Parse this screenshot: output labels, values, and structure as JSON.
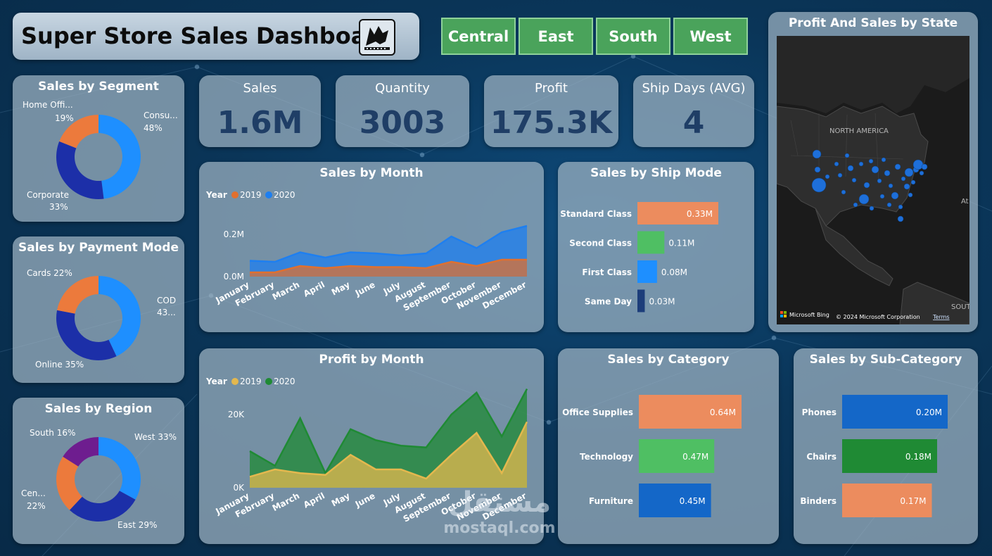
{
  "header": {
    "title": "Super Store Sales Dashboard"
  },
  "slicers": [
    "Central",
    "East",
    "South",
    "West"
  ],
  "kpis": [
    {
      "title": "Sales",
      "value": "1.6M"
    },
    {
      "title": "Quantity",
      "value": "3003"
    },
    {
      "title": "Profit",
      "value": "175.3K"
    },
    {
      "title": "Ship Days (AVG)",
      "value": "4"
    }
  ],
  "colors": {
    "orange": "#ec7a3c",
    "blue": "#1e8fff",
    "navy": "#1c2fa8",
    "purple": "#6e1d8f",
    "green": "#4fbf63",
    "dark_green": "#1f8a34",
    "salmon": "#ec8c5e",
    "mid_blue": "#1467c8"
  },
  "map": {
    "title": "Profit And Sales by State",
    "label_na": "NORTH AMERICA",
    "label_sa": "SOUTH A",
    "label_at": "At",
    "attribution_brand": "Microsoft Bing",
    "attribution": "© 2024 Microsoft Corporation",
    "terms": "Terms"
  },
  "watermark": {
    "logo": "مستقل",
    "text": "mostaql.com"
  },
  "chart_data": [
    {
      "id": "segment",
      "type": "pie",
      "title": "Sales by Segment",
      "slices": [
        {
          "label": "Consu...",
          "pct": "48%",
          "value": 48,
          "color": "#1e8fff"
        },
        {
          "label": "Corporate",
          "pct": "33%",
          "value": 33,
          "color": "#1c2fa8"
        },
        {
          "label": "Home Offi...",
          "pct": "19%",
          "value": 19,
          "color": "#ec7a3c"
        }
      ]
    },
    {
      "id": "payment",
      "type": "pie",
      "title": "Sales by Payment Mode",
      "slices": [
        {
          "label": "COD",
          "pct": "43...",
          "value": 43,
          "color": "#1e8fff"
        },
        {
          "label": "Online 35%",
          "value": 35,
          "color": "#1c2fa8"
        },
        {
          "label": "Cards 22%",
          "value": 22,
          "color": "#ec7a3c"
        }
      ]
    },
    {
      "id": "region",
      "type": "pie",
      "title": "Sales by Region",
      "slices": [
        {
          "label": "West 33%",
          "value": 33,
          "color": "#1e8fff"
        },
        {
          "label": "East 29%",
          "value": 29,
          "color": "#1c2fa8"
        },
        {
          "label": "Cen...",
          "pct": "22%",
          "value": 22,
          "color": "#ec7a3c"
        },
        {
          "label": "South 16%",
          "value": 16,
          "color": "#6e1d8f"
        }
      ]
    },
    {
      "id": "sales_month",
      "type": "area",
      "title": "Sales by Month",
      "legend_title": "Year",
      "categories": [
        "January",
        "February",
        "March",
        "April",
        "May",
        "June",
        "July",
        "August",
        "September",
        "October",
        "November",
        "December"
      ],
      "ylim": [
        0,
        0.26
      ],
      "yticks": [
        {
          "v": 0,
          "label": "0.0M"
        },
        {
          "v": 0.2,
          "label": "0.2M"
        }
      ],
      "series": [
        {
          "name": "2019",
          "color": "#e0702f",
          "values": [
            0.02,
            0.02,
            0.05,
            0.04,
            0.05,
            0.045,
            0.045,
            0.04,
            0.07,
            0.05,
            0.08,
            0.08
          ]
        },
        {
          "name": "2020",
          "color": "#1e7ff0",
          "values": [
            0.075,
            0.07,
            0.115,
            0.09,
            0.115,
            0.11,
            0.1,
            0.11,
            0.19,
            0.135,
            0.21,
            0.24
          ]
        }
      ]
    },
    {
      "id": "profit_month",
      "type": "area",
      "title": "Profit by Month",
      "legend_title": "Year",
      "categories": [
        "January",
        "February",
        "March",
        "April",
        "May",
        "June",
        "July",
        "August",
        "September",
        "October",
        "November",
        "December"
      ],
      "ylim": [
        0,
        25000
      ],
      "yticks": [
        {
          "v": 0,
          "label": "0K"
        },
        {
          "v": 20000,
          "label": "20K"
        }
      ],
      "series": [
        {
          "name": "2019",
          "color": "#e4b84e",
          "values": [
            3000,
            5000,
            4000,
            3500,
            9000,
            5000,
            5000,
            2500,
            9000,
            15000,
            4000,
            18000
          ]
        },
        {
          "name": "2020",
          "color": "#1f8a34",
          "values": [
            10000,
            6000,
            19000,
            4000,
            16000,
            13000,
            11500,
            11000,
            20000,
            26000,
            14000,
            27000
          ]
        }
      ]
    },
    {
      "id": "ship_mode",
      "type": "bar",
      "title": "Sales by Ship Mode",
      "xlim": [
        0,
        0.33
      ],
      "categories": [
        "Standard Class",
        "Second Class",
        "First Class",
        "Same Day"
      ],
      "values": [
        0.33,
        0.11,
        0.08,
        0.03
      ],
      "labels": [
        "0.33M",
        "0.11M",
        "0.08M",
        "0.03M"
      ],
      "colors": [
        "#ec8c5e",
        "#4fbf63",
        "#1e8fff",
        "#1c3d7a"
      ]
    },
    {
      "id": "category",
      "type": "bar",
      "title": "Sales by Category",
      "xlim": [
        0,
        0.64
      ],
      "categories": [
        "Office Supplies",
        "Technology",
        "Furniture"
      ],
      "values": [
        0.64,
        0.47,
        0.45
      ],
      "labels": [
        "0.64M",
        "0.47M",
        "0.45M"
      ],
      "colors": [
        "#ec8c5e",
        "#4fbf63",
        "#1467c8"
      ]
    },
    {
      "id": "subcategory",
      "type": "bar",
      "title": "Sales by Sub-Category",
      "xlim": [
        0,
        0.2
      ],
      "categories": [
        "Phones",
        "Chairs",
        "Binders"
      ],
      "values": [
        0.2,
        0.18,
        0.17
      ],
      "labels": [
        "0.20M",
        "0.18M",
        "0.17M"
      ],
      "colors": [
        "#1467c8",
        "#1f8a34",
        "#ec8c5e"
      ]
    }
  ]
}
